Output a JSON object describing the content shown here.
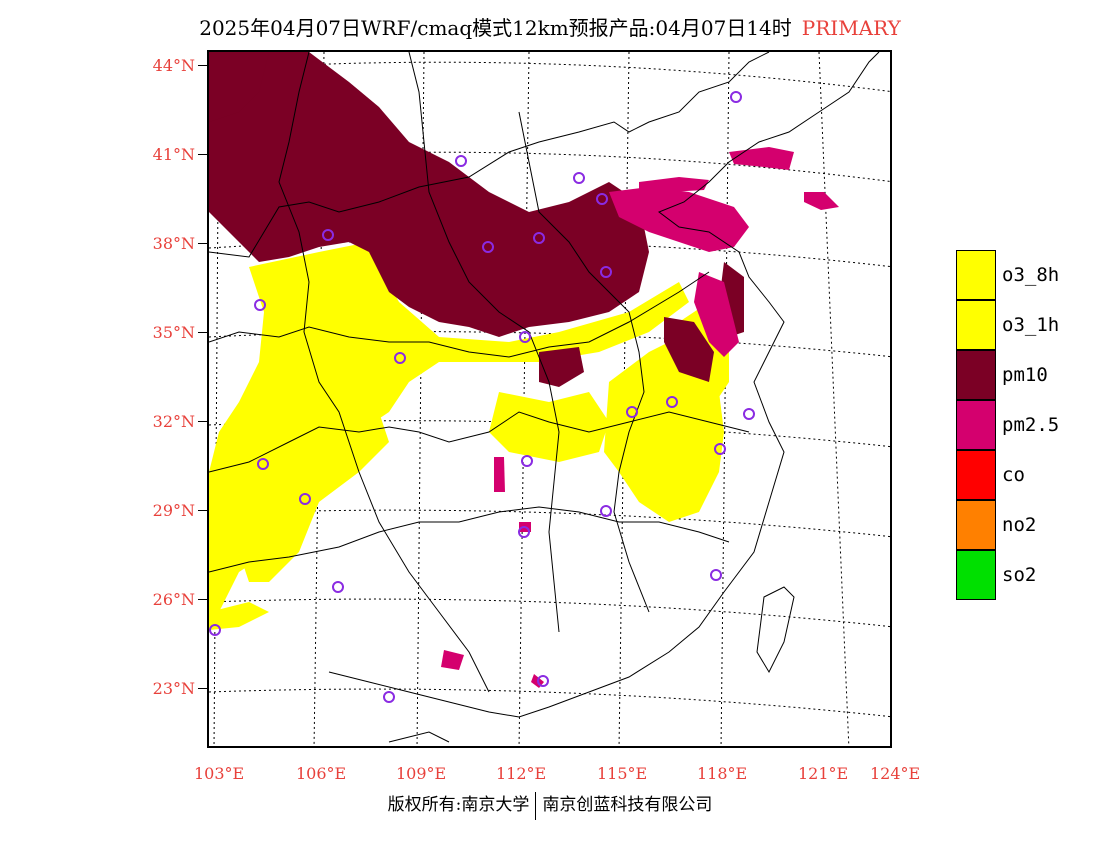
{
  "title": {
    "text": "2025年04月07日WRF/cmaq模式12km预报产品:04月07日14时",
    "badge": "PRIMARY"
  },
  "map": {
    "lat_labels": [
      "44°N",
      "41°N",
      "38°N",
      "35°N",
      "32°N",
      "29°N",
      "26°N",
      "23°N"
    ],
    "lon_labels": [
      "103°E",
      "106°E",
      "109°E",
      "112°E",
      "115°E",
      "118°E",
      "121°E",
      "124°E"
    ]
  },
  "legend": {
    "items": [
      {
        "label": "o3_8h",
        "color": "#ffff00"
      },
      {
        "label": "o3_1h",
        "color": "#ffff00"
      },
      {
        "label": "pm10",
        "color": "#7b0025"
      },
      {
        "label": "pm2.5",
        "color": "#d4006e"
      },
      {
        "label": "co",
        "color": "#ff0000"
      },
      {
        "label": "no2",
        "color": "#ff8000"
      },
      {
        "label": "so2",
        "color": "#00e000"
      }
    ]
  },
  "footer": {
    "left": "版权所有:南京大学",
    "right": "南京创蓝科技有限公司"
  }
}
